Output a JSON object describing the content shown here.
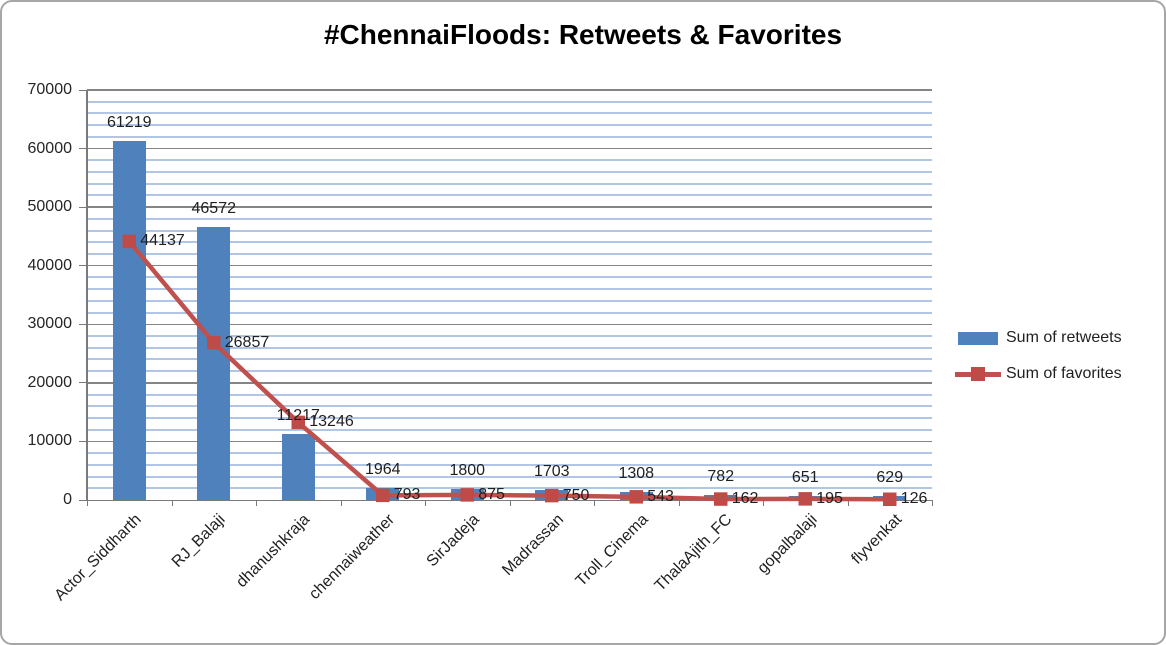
{
  "title": "#ChennaiFloods: Retweets & Favorites",
  "colors": {
    "bar": "#4f81bd",
    "line": "#c0504d",
    "marker": "#be4b48",
    "minor_grid": "#b1c5e6",
    "major_grid": "#858585",
    "axis": "#7a7a7a",
    "text": "#1f1f1f",
    "frame_border": "#a6a6a6"
  },
  "y_axis": {
    "min": 0,
    "max": 70000,
    "major_unit": 10000,
    "minor_unit": 2000,
    "tick_labels": [
      "0",
      "10000",
      "20000",
      "30000",
      "40000",
      "50000",
      "60000",
      "70000"
    ]
  },
  "legend": {
    "position": "right",
    "items": [
      {
        "label": "Sum of retweets",
        "swatch": "bar"
      },
      {
        "label": "Sum of favorites",
        "swatch": "line-marker"
      }
    ]
  },
  "chart_data": {
    "type": "bar",
    "title": "#ChennaiFloods: Retweets & Favorites",
    "categories": [
      "Actor_Siddharth",
      "RJ_Balaji",
      "dhanushkraja",
      "chennaiweather",
      "SirJadeja",
      "Madrassan",
      "Troll_Cinema",
      "ThalaAjith_FC",
      "gopalbalaji",
      "flyvenkat"
    ],
    "series": [
      {
        "name": "Sum of retweets",
        "type": "bar",
        "color": "#4f81bd",
        "values": [
          61219,
          46572,
          11217,
          1964,
          1800,
          1703,
          1308,
          782,
          651,
          629
        ]
      },
      {
        "name": "Sum of favorites",
        "type": "line",
        "color": "#c0504d",
        "values": [
          44137,
          26857,
          13246,
          793,
          875,
          750,
          543,
          162,
          195,
          126
        ]
      }
    ],
    "xlabel": "",
    "ylabel": "",
    "ylim": [
      0,
      70000
    ],
    "grid": "major+minor",
    "legend_position": "right",
    "data_labels": true
  }
}
